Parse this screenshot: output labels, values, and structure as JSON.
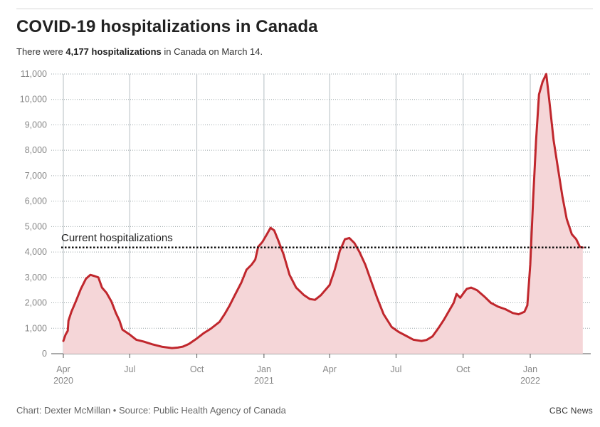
{
  "header": {
    "title": "COVID-19 hospitalizations in Canada",
    "subtitle_prefix": "There were ",
    "subtitle_value": "4,177 hospitalizations",
    "subtitle_suffix": " in Canada on March 14."
  },
  "footer": {
    "credit": "Chart: Dexter McMillan • Source: Public Health Agency of Canada",
    "brand": "CBC News"
  },
  "colors": {
    "line": "#c0272d",
    "fill": "#f5d6d8",
    "reference": "#111111",
    "grid": "#9aa5a8",
    "vgrid": "#b5bec2",
    "axis_text": "#888888"
  },
  "chart_data": {
    "type": "area",
    "title": "COVID-19 hospitalizations in Canada",
    "xlabel": "",
    "ylabel": "",
    "ylim": [
      0,
      11000
    ],
    "yticks": [
      0,
      1000,
      2000,
      3000,
      4000,
      5000,
      6000,
      7000,
      8000,
      9000,
      10000,
      11000
    ],
    "ytick_labels": [
      "0",
      "1,000",
      "2,000",
      "3,000",
      "4,000",
      "5,000",
      "6,000",
      "7,000",
      "8,000",
      "9,000",
      "10,000",
      "11,000"
    ],
    "xlim": [
      "2020-03-23",
      "2022-03-16"
    ],
    "xticks": [
      {
        "date": "2020-04-01",
        "label": "Apr",
        "year": "2020"
      },
      {
        "date": "2020-07-01",
        "label": "Jul",
        "year": ""
      },
      {
        "date": "2020-10-01",
        "label": "Oct",
        "year": ""
      },
      {
        "date": "2021-01-01",
        "label": "Jan",
        "year": "2021"
      },
      {
        "date": "2021-04-01",
        "label": "Apr",
        "year": ""
      },
      {
        "date": "2021-07-01",
        "label": "Jul",
        "year": ""
      },
      {
        "date": "2021-10-01",
        "label": "Oct",
        "year": ""
      },
      {
        "date": "2022-01-01",
        "label": "Jan",
        "year": "2022"
      }
    ],
    "grid": true,
    "reference_line": {
      "value": 4177,
      "label": "Current hospitalizations"
    },
    "series": [
      {
        "points": [
          [
            "2020-04-01",
            500
          ],
          [
            "2020-04-04",
            750
          ],
          [
            "2020-04-07",
            900
          ],
          [
            "2020-04-08",
            1300
          ],
          [
            "2020-04-12",
            1650
          ],
          [
            "2020-04-18",
            2050
          ],
          [
            "2020-04-25",
            2550
          ],
          [
            "2020-05-02",
            2950
          ],
          [
            "2020-05-08",
            3100
          ],
          [
            "2020-05-14",
            3050
          ],
          [
            "2020-05-19",
            3000
          ],
          [
            "2020-05-24",
            2600
          ],
          [
            "2020-05-30",
            2400
          ],
          [
            "2020-06-06",
            2050
          ],
          [
            "2020-06-12",
            1600
          ],
          [
            "2020-06-17",
            1300
          ],
          [
            "2020-06-21",
            950
          ],
          [
            "2020-07-01",
            750
          ],
          [
            "2020-07-10",
            550
          ],
          [
            "2020-07-20",
            480
          ],
          [
            "2020-08-01",
            370
          ],
          [
            "2020-08-15",
            270
          ],
          [
            "2020-08-28",
            220
          ],
          [
            "2020-09-05",
            240
          ],
          [
            "2020-09-12",
            280
          ],
          [
            "2020-09-20",
            380
          ],
          [
            "2020-10-01",
            600
          ],
          [
            "2020-10-10",
            800
          ],
          [
            "2020-10-20",
            980
          ],
          [
            "2020-11-01",
            1250
          ],
          [
            "2020-11-08",
            1550
          ],
          [
            "2020-11-15",
            1900
          ],
          [
            "2020-11-22",
            2300
          ],
          [
            "2020-12-01",
            2800
          ],
          [
            "2020-12-08",
            3300
          ],
          [
            "2020-12-15",
            3500
          ],
          [
            "2020-12-20",
            3700
          ],
          [
            "2020-12-24",
            4200
          ],
          [
            "2020-12-30",
            4400
          ],
          [
            "2021-01-05",
            4700
          ],
          [
            "2021-01-10",
            4950
          ],
          [
            "2021-01-15",
            4850
          ],
          [
            "2021-01-20",
            4500
          ],
          [
            "2021-01-28",
            3900
          ],
          [
            "2021-02-05",
            3100
          ],
          [
            "2021-02-14",
            2600
          ],
          [
            "2021-02-25",
            2300
          ],
          [
            "2021-03-05",
            2150
          ],
          [
            "2021-03-12",
            2120
          ],
          [
            "2021-03-20",
            2300
          ],
          [
            "2021-04-01",
            2700
          ],
          [
            "2021-04-08",
            3300
          ],
          [
            "2021-04-15",
            4050
          ],
          [
            "2021-04-22",
            4500
          ],
          [
            "2021-04-28",
            4550
          ],
          [
            "2021-05-05",
            4350
          ],
          [
            "2021-05-12",
            4000
          ],
          [
            "2021-05-20",
            3500
          ],
          [
            "2021-05-28",
            2850
          ],
          [
            "2021-06-05",
            2200
          ],
          [
            "2021-06-14",
            1550
          ],
          [
            "2021-06-25",
            1050
          ],
          [
            "2021-07-05",
            850
          ],
          [
            "2021-07-15",
            700
          ],
          [
            "2021-07-25",
            550
          ],
          [
            "2021-08-05",
            500
          ],
          [
            "2021-08-12",
            540
          ],
          [
            "2021-08-20",
            680
          ],
          [
            "2021-08-28",
            1000
          ],
          [
            "2021-09-05",
            1350
          ],
          [
            "2021-09-12",
            1700
          ],
          [
            "2021-09-18",
            2000
          ],
          [
            "2021-09-22",
            2350
          ],
          [
            "2021-09-27",
            2200
          ],
          [
            "2021-10-02",
            2400
          ],
          [
            "2021-10-06",
            2550
          ],
          [
            "2021-10-12",
            2600
          ],
          [
            "2021-10-20",
            2500
          ],
          [
            "2021-10-30",
            2250
          ],
          [
            "2021-11-08",
            2000
          ],
          [
            "2021-11-18",
            1850
          ],
          [
            "2021-11-28",
            1750
          ],
          [
            "2021-12-08",
            1600
          ],
          [
            "2021-12-16",
            1550
          ],
          [
            "2021-12-24",
            1650
          ],
          [
            "2021-12-28",
            1900
          ],
          [
            "2022-01-01",
            3500
          ],
          [
            "2022-01-05",
            6100
          ],
          [
            "2022-01-09",
            8400
          ],
          [
            "2022-01-13",
            10200
          ],
          [
            "2022-01-18",
            10700
          ],
          [
            "2022-01-23",
            11000
          ],
          [
            "2022-01-27",
            10000
          ],
          [
            "2022-02-02",
            8400
          ],
          [
            "2022-02-08",
            7300
          ],
          [
            "2022-02-14",
            6200
          ],
          [
            "2022-02-20",
            5300
          ],
          [
            "2022-02-27",
            4700
          ],
          [
            "2022-03-05",
            4500
          ],
          [
            "2022-03-10",
            4200
          ],
          [
            "2022-03-14",
            4177
          ]
        ]
      }
    ]
  }
}
